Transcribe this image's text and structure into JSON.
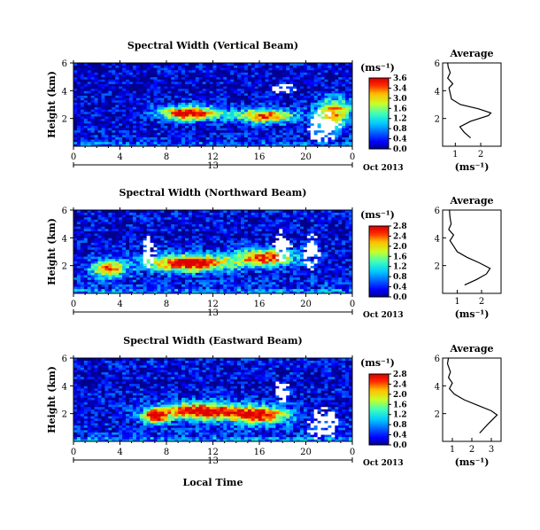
{
  "figure": {
    "xlabel": "Local Time",
    "date_label": "Oct 2013",
    "day_label": "13",
    "colorbar_unit": "(ms⁻¹)",
    "average_xlabel": "(ms⁻¹)"
  },
  "chart_data": [
    {
      "type": "heatmap",
      "title": "Spectral Width (Vertical Beam)",
      "ylabel": "Height (km)",
      "xlim": [
        0,
        24
      ],
      "ylim": [
        0,
        6
      ],
      "xticks": [
        "0",
        "4",
        "8",
        "12",
        "16",
        "20",
        "0"
      ],
      "yticks": [
        "2",
        "4",
        "6"
      ],
      "colorbar": {
        "range": [
          0.0,
          3.6
        ],
        "ticks": [
          "3.6",
          "3.4",
          "3.0",
          "1.6",
          "1.2",
          "0.8",
          "0.4",
          "0.0"
        ]
      },
      "sources": [
        {
          "t": 10.0,
          "h": 2.4,
          "v": 3.6,
          "st": 2.5,
          "sh": 0.5
        },
        {
          "t": 16.5,
          "h": 2.2,
          "v": 3.0,
          "st": 2.5,
          "sh": 0.5
        },
        {
          "t": 22.5,
          "h": 2.5,
          "v": 2.6,
          "st": 1.5,
          "sh": 1.0
        }
      ],
      "missing": [
        {
          "t": 18.0,
          "h": 4.2,
          "st": 1.2,
          "sh": 0.4
        },
        {
          "t": 21.5,
          "h": 1.5,
          "st": 1.5,
          "sh": 1.2
        }
      ],
      "average": {
        "xlim": [
          0.5,
          2.8
        ],
        "xticks": [
          "1",
          "2"
        ],
        "profile": [
          [
            1.6,
            0.6
          ],
          [
            1.35,
            1.0
          ],
          [
            1.18,
            1.4
          ],
          [
            1.6,
            1.8
          ],
          [
            2.3,
            2.2
          ],
          [
            2.4,
            2.4
          ],
          [
            1.9,
            2.7
          ],
          [
            1.2,
            3.0
          ],
          [
            0.85,
            3.4
          ],
          [
            0.8,
            3.8
          ],
          [
            0.75,
            4.2
          ],
          [
            0.9,
            4.5
          ],
          [
            0.7,
            4.9
          ],
          [
            0.8,
            5.3
          ],
          [
            0.72,
            5.7
          ],
          [
            0.7,
            6.0
          ]
        ]
      }
    },
    {
      "type": "heatmap",
      "title": "Spectral Width (Northward Beam)",
      "ylabel": "Height (km)",
      "xlim": [
        0,
        24
      ],
      "ylim": [
        0,
        6
      ],
      "xticks": [
        "0",
        "4",
        "8",
        "12",
        "16",
        "20",
        "0"
      ],
      "yticks": [
        "2",
        "4",
        "6"
      ],
      "colorbar": {
        "range": [
          0.0,
          2.8
        ],
        "ticks": [
          "2.8",
          "2.4",
          "2.0",
          "1.6",
          "1.2",
          "0.8",
          "0.4",
          "0.0"
        ]
      },
      "sources": [
        {
          "t": 10.0,
          "h": 2.2,
          "v": 2.8,
          "st": 3.5,
          "sh": 0.6
        },
        {
          "t": 16.5,
          "h": 2.6,
          "v": 2.4,
          "st": 2.5,
          "sh": 0.6
        },
        {
          "t": 3.0,
          "h": 1.8,
          "v": 2.2,
          "st": 1.5,
          "sh": 0.6
        }
      ],
      "missing": [
        {
          "t": 6.5,
          "h": 3.0,
          "st": 0.6,
          "sh": 1.2
        },
        {
          "t": 18.0,
          "h": 3.5,
          "st": 0.8,
          "sh": 1.2
        },
        {
          "t": 20.5,
          "h": 3.0,
          "st": 0.8,
          "sh": 1.5
        }
      ],
      "average": {
        "xlim": [
          0.4,
          2.8
        ],
        "xticks": [
          "1",
          "2"
        ],
        "profile": [
          [
            1.3,
            0.6
          ],
          [
            1.8,
            1.0
          ],
          [
            2.2,
            1.4
          ],
          [
            2.35,
            1.8
          ],
          [
            1.9,
            2.2
          ],
          [
            1.4,
            2.6
          ],
          [
            1.0,
            3.0
          ],
          [
            0.85,
            3.4
          ],
          [
            0.7,
            3.8
          ],
          [
            0.85,
            4.2
          ],
          [
            0.65,
            4.6
          ],
          [
            0.75,
            5.0
          ],
          [
            0.7,
            5.5
          ],
          [
            0.68,
            6.0
          ]
        ]
      }
    },
    {
      "type": "heatmap",
      "title": "Spectral Width (Eastward Beam)",
      "ylabel": "Height (km)",
      "xlim": [
        0,
        24
      ],
      "ylim": [
        0,
        6
      ],
      "xticks": [
        "0",
        "4",
        "8",
        "12",
        "16",
        "20",
        "0"
      ],
      "yticks": [
        "2",
        "4",
        "6"
      ],
      "colorbar": {
        "range": [
          0.0,
          2.8
        ],
        "ticks": [
          "2.8",
          "2.4",
          "2.0",
          "1.6",
          "1.2",
          "0.8",
          "0.4",
          "0.0"
        ]
      },
      "sources": [
        {
          "t": 11.0,
          "h": 2.2,
          "v": 2.8,
          "st": 3.5,
          "sh": 0.6
        },
        {
          "t": 16.0,
          "h": 1.9,
          "v": 2.5,
          "st": 2.5,
          "sh": 0.6
        },
        {
          "t": 7.0,
          "h": 1.8,
          "v": 2.6,
          "st": 1.0,
          "sh": 0.5
        }
      ],
      "missing": [
        {
          "t": 18.0,
          "h": 3.6,
          "st": 0.8,
          "sh": 0.8
        },
        {
          "t": 21.5,
          "h": 1.3,
          "st": 1.5,
          "sh": 1.2
        }
      ],
      "average": {
        "xlim": [
          0.5,
          3.5
        ],
        "xticks": [
          "1",
          "2",
          "3"
        ],
        "profile": [
          [
            2.4,
            0.6
          ],
          [
            2.8,
            1.2
          ],
          [
            3.3,
            1.9
          ],
          [
            3.0,
            2.2
          ],
          [
            2.3,
            2.6
          ],
          [
            1.6,
            3.0
          ],
          [
            1.1,
            3.4
          ],
          [
            0.85,
            3.8
          ],
          [
            1.0,
            4.2
          ],
          [
            0.8,
            4.6
          ],
          [
            0.9,
            5.0
          ],
          [
            0.75,
            5.6
          ],
          [
            0.8,
            6.0
          ]
        ]
      }
    }
  ]
}
